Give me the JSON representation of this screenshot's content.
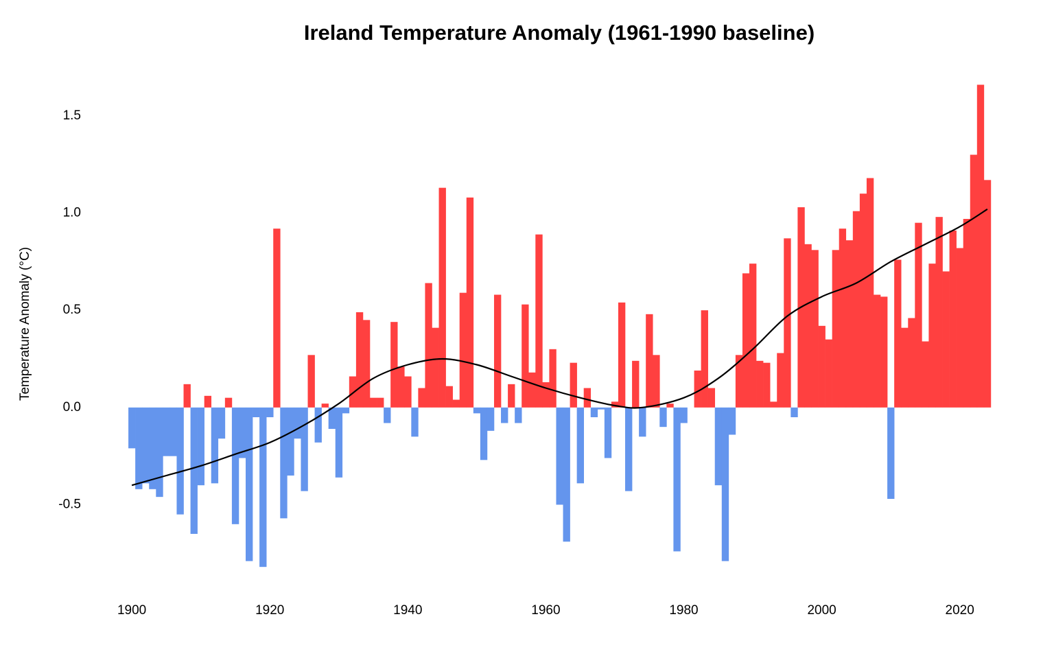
{
  "chart_data": {
    "type": "bar",
    "title": "Ireland Temperature Anomaly (1961-1990 baseline)",
    "y_label": "Temperature Anomaly (°C)",
    "x": [
      1900,
      1901,
      1902,
      1903,
      1904,
      1905,
      1906,
      1907,
      1908,
      1909,
      1910,
      1911,
      1912,
      1913,
      1914,
      1915,
      1916,
      1917,
      1918,
      1919,
      1920,
      1921,
      1922,
      1923,
      1924,
      1925,
      1926,
      1927,
      1928,
      1929,
      1930,
      1931,
      1932,
      1933,
      1934,
      1935,
      1936,
      1937,
      1938,
      1939,
      1940,
      1941,
      1942,
      1943,
      1944,
      1945,
      1946,
      1947,
      1948,
      1949,
      1950,
      1951,
      1952,
      1953,
      1954,
      1955,
      1956,
      1957,
      1958,
      1959,
      1960,
      1961,
      1962,
      1963,
      1964,
      1965,
      1966,
      1967,
      1968,
      1969,
      1970,
      1971,
      1972,
      1973,
      1974,
      1975,
      1976,
      1977,
      1978,
      1979,
      1980,
      1981,
      1982,
      1983,
      1984,
      1985,
      1986,
      1987,
      1988,
      1989,
      1990,
      1991,
      1992,
      1993,
      1994,
      1995,
      1996,
      1997,
      1998,
      1999,
      2000,
      2001,
      2002,
      2003,
      2004,
      2005,
      2006,
      2007,
      2008,
      2009,
      2010,
      2011,
      2012,
      2013,
      2014,
      2015,
      2016,
      2017,
      2018,
      2019,
      2020,
      2021,
      2022,
      2023,
      2024
    ],
    "values": [
      -0.21,
      -0.42,
      -0.39,
      -0.42,
      -0.46,
      -0.25,
      -0.25,
      -0.55,
      0.12,
      -0.65,
      -0.4,
      0.06,
      -0.39,
      -0.16,
      0.05,
      -0.6,
      -0.26,
      -0.79,
      -0.05,
      -0.82,
      -0.05,
      0.92,
      -0.57,
      -0.35,
      -0.16,
      -0.43,
      0.27,
      -0.18,
      0.02,
      -0.11,
      -0.36,
      -0.03,
      0.16,
      0.49,
      0.45,
      0.05,
      0.05,
      -0.08,
      0.44,
      0.21,
      0.16,
      -0.15,
      0.1,
      0.64,
      0.41,
      1.13,
      0.11,
      0.04,
      0.59,
      1.08,
      -0.03,
      -0.27,
      -0.12,
      0.58,
      -0.08,
      0.12,
      -0.08,
      0.53,
      0.18,
      0.89,
      0.13,
      0.3,
      -0.5,
      -0.69,
      0.23,
      -0.39,
      0.1,
      -0.05,
      -0.01,
      -0.26,
      0.03,
      0.54,
      -0.43,
      0.24,
      -0.15,
      0.48,
      0.27,
      -0.1,
      0.02,
      -0.74,
      -0.08,
      0.0,
      0.19,
      0.5,
      0.1,
      -0.4,
      -0.79,
      -0.14,
      0.27,
      0.69,
      0.74,
      0.24,
      0.23,
      0.03,
      0.28,
      0.87,
      -0.05,
      1.03,
      0.84,
      0.81,
      0.42,
      0.35,
      0.81,
      0.92,
      0.86,
      1.01,
      1.1,
      1.18,
      0.58,
      0.57,
      -0.47,
      0.76,
      0.41,
      0.46,
      0.95,
      0.34,
      0.74,
      0.98,
      0.7,
      0.91,
      0.82,
      0.97,
      1.3,
      1.66,
      1.17
    ],
    "positive_color": "#ff4040",
    "negative_color": "#6495ed",
    "trend": {
      "color": "#000000",
      "x": [
        1900,
        1905,
        1910,
        1915,
        1920,
        1925,
        1930,
        1935,
        1940,
        1945,
        1950,
        1955,
        1960,
        1965,
        1970,
        1974,
        1980,
        1985,
        1990,
        1995,
        2000,
        2005,
        2010,
        2015,
        2020,
        2024
      ],
      "values": [
        -0.4,
        -0.35,
        -0.3,
        -0.24,
        -0.18,
        -0.09,
        0.02,
        0.15,
        0.22,
        0.25,
        0.22,
        0.16,
        0.1,
        0.05,
        0.01,
        0.0,
        0.05,
        0.15,
        0.3,
        0.47,
        0.57,
        0.64,
        0.75,
        0.84,
        0.93,
        1.02
      ]
    },
    "xlim": [
      1898,
      2026
    ],
    "xticks": [
      1900,
      1920,
      1940,
      1960,
      1980,
      2000,
      2020
    ],
    "ylim": [
      -0.95,
      1.75
    ],
    "yticks": [
      -0.5,
      {
        "value": 0,
        "label": "0.0"
      },
      0.5,
      {
        "value": 1,
        "label": "1.0"
      },
      1.5
    ],
    "grid": false
  }
}
